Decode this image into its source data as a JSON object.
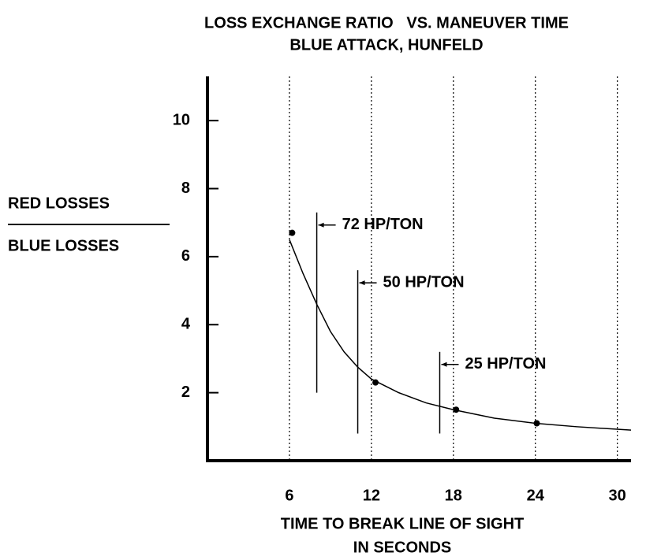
{
  "chart_data": {
    "type": "line",
    "title": "LOSS EXCHANGE RATIO   VS. MANEUVER TIME",
    "subtitle": "BLUE ATTACK, HUNFELD",
    "xlabel": [
      "TIME TO BREAK LINE OF SIGHT",
      "IN SECONDS"
    ],
    "ylabel": [
      "RED LOSSES",
      "BLUE LOSSES"
    ],
    "xlim": [
      0,
      31
    ],
    "ylim": [
      0,
      11.3
    ],
    "xticks": [
      6,
      12,
      18,
      24,
      30
    ],
    "yticks": [
      2,
      4,
      6,
      8,
      10
    ],
    "grid": "x",
    "color": "#000000",
    "series": [
      {
        "x": [
          6,
          7,
          8,
          9,
          10,
          11,
          12,
          14,
          16,
          18,
          21,
          24,
          27,
          31
        ],
        "values": [
          6.5,
          5.5,
          4.6,
          3.8,
          3.2,
          2.75,
          2.4,
          2.0,
          1.7,
          1.5,
          1.25,
          1.1,
          1.0,
          0.9
        ]
      },
      {
        "x": [
          6.2,
          12.3,
          18.2,
          24.1
        ],
        "values": [
          6.7,
          2.3,
          1.5,
          1.1
        ]
      }
    ],
    "annotations": [
      {
        "text": "72 HP/TON",
        "x": 8,
        "y_top": 7.3,
        "y_bottom": 2.0
      },
      {
        "text": "50 HP/TON",
        "x": 11,
        "y_top": 5.6,
        "y_bottom": 0.8
      },
      {
        "text": "25 HP/TON",
        "x": 17,
        "y_top": 3.2,
        "y_bottom": 0.8
      }
    ]
  }
}
